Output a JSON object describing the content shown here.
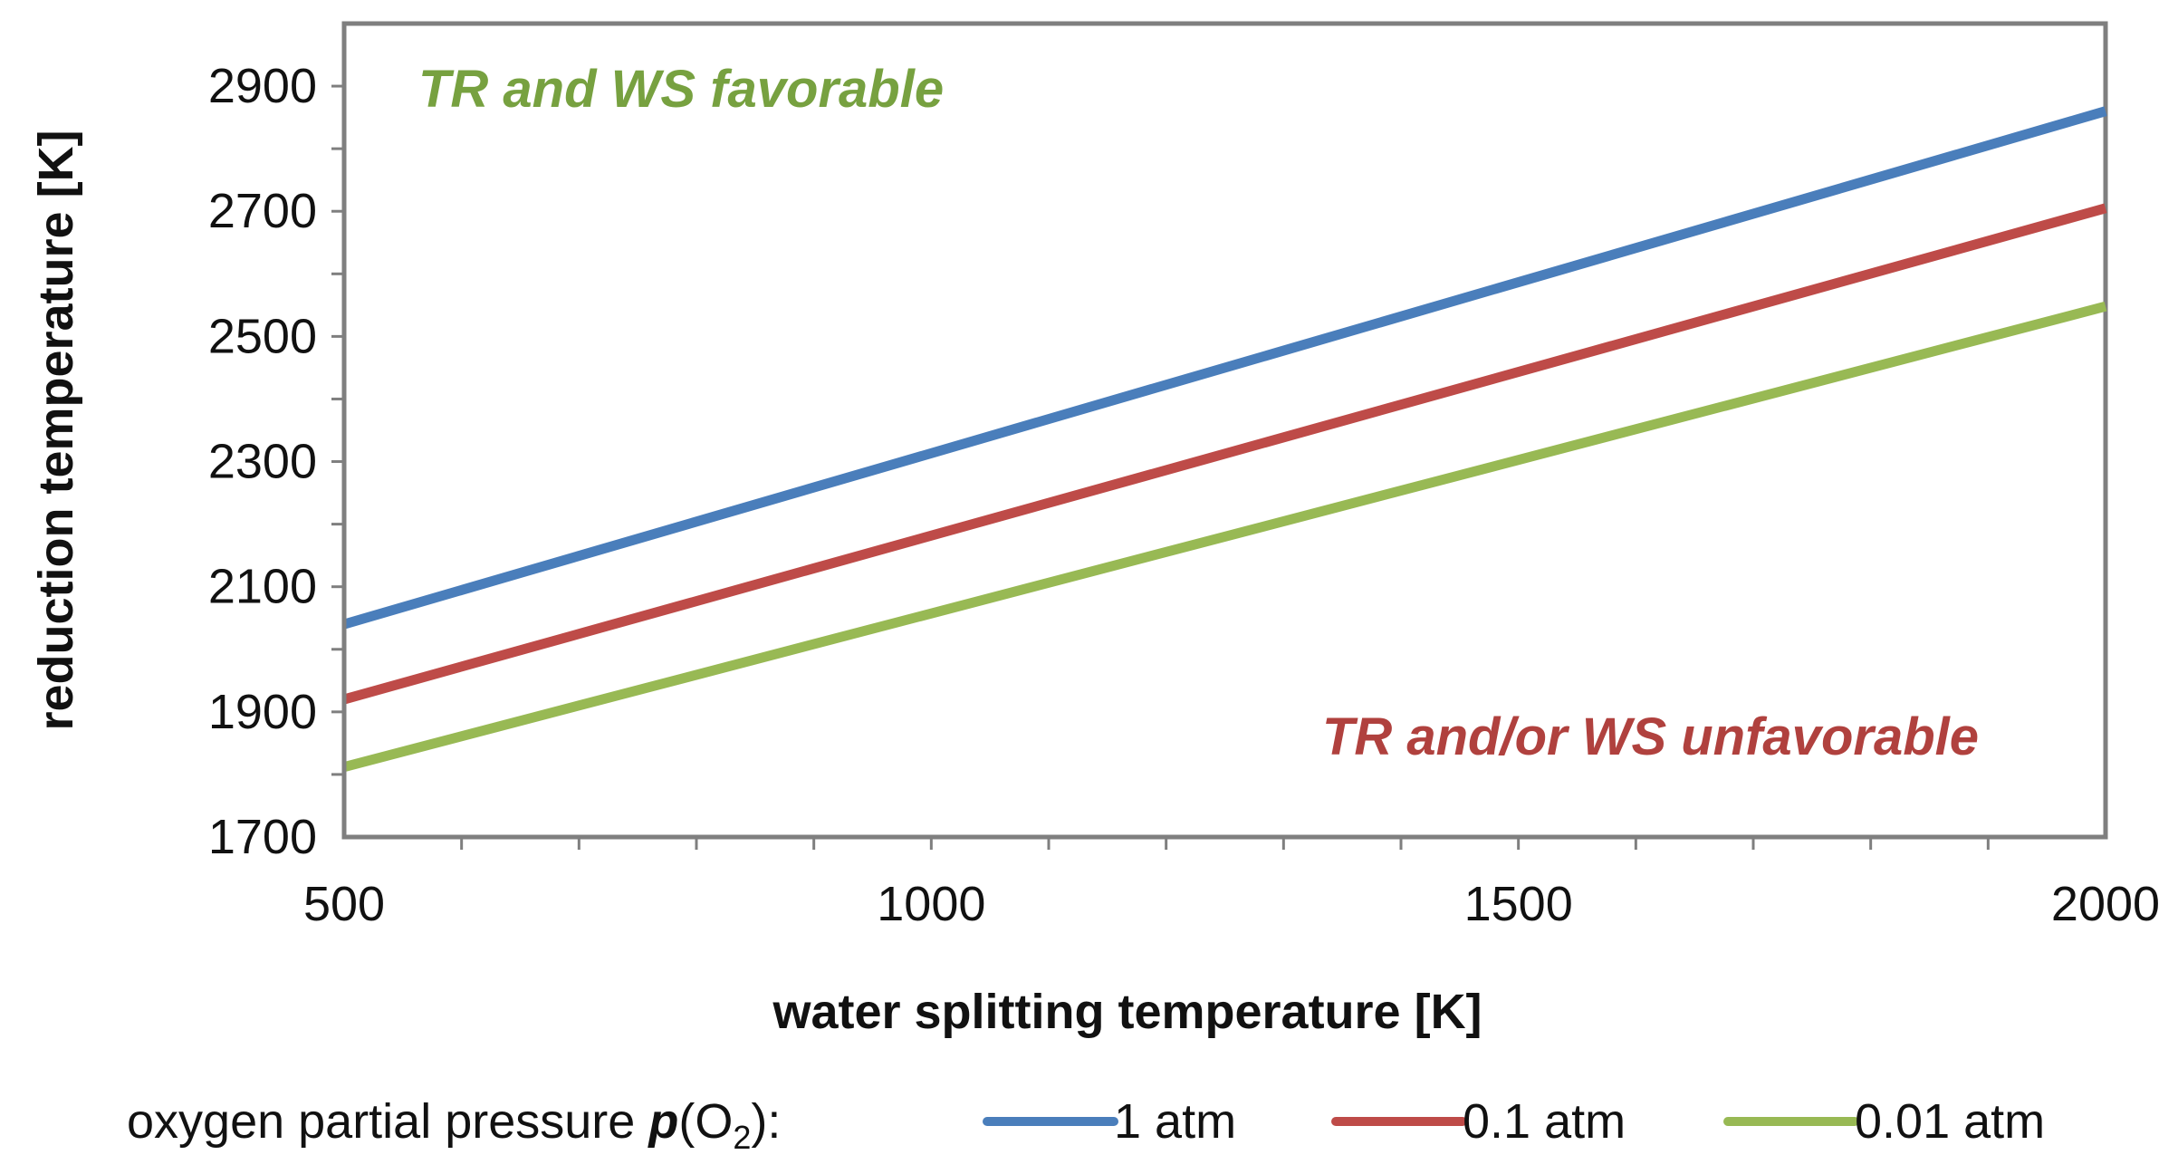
{
  "chart_data": {
    "type": "line",
    "xlabel": "water splitting temperature [K]",
    "ylabel": "reduction temperature [K]",
    "xlim": [
      500,
      2000
    ],
    "ylim": [
      1700,
      3000
    ],
    "x_ticks": [
      500,
      1000,
      1500,
      2000
    ],
    "x_minor_step": 100,
    "y_ticks": [
      1700,
      1900,
      2100,
      2300,
      2500,
      2700,
      2900
    ],
    "y_minor_step": 100,
    "grid": false,
    "legend_position": "bottom",
    "legend_prefix": "oxygen partial pressure",
    "legend_symbol_p": "p",
    "legend_symbol_species": "O",
    "legend_symbol_sub": "2",
    "legend_symbol_suffix": "):",
    "series": [
      {
        "name": "1 atm",
        "color": "#4a7ebb",
        "x": [
          500,
          2000
        ],
        "y": [
          2040,
          2860
        ]
      },
      {
        "name": "0.1 atm",
        "color": "#be4b48",
        "x": [
          500,
          2000
        ],
        "y": [
          1920,
          2705
        ]
      },
      {
        "name": "0.01 atm",
        "color": "#98b954",
        "x": [
          500,
          2000
        ],
        "y": [
          1812,
          2548
        ]
      }
    ],
    "annotations": [
      {
        "text": "TR and WS favorable",
        "color": "#77a140"
      },
      {
        "text": "TR and/or WS unfavorable",
        "color": "#b0413e"
      }
    ]
  }
}
